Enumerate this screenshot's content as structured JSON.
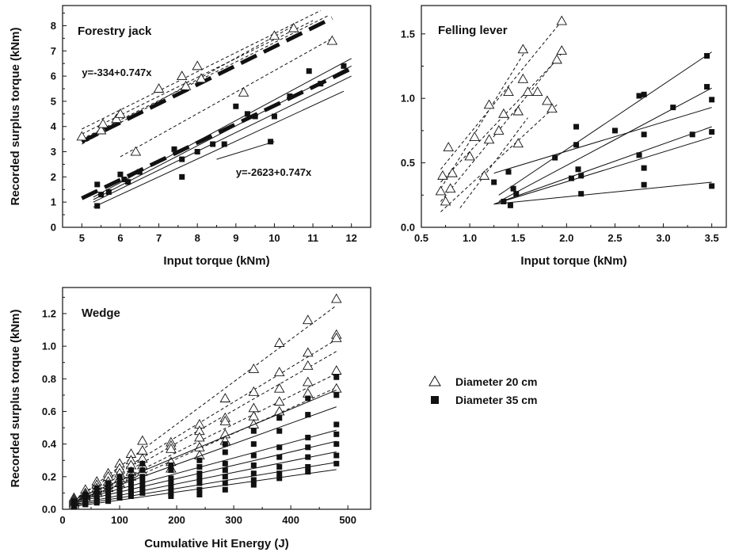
{
  "chart_data": [
    {
      "type": "scatter",
      "title": "Forestry jack",
      "xlabel": "Input torque (kNm)",
      "ylabel": "Recorded surplus torque (kNm)",
      "xlim": [
        4.5,
        12.5
      ],
      "ylim": [
        0,
        8.8
      ],
      "xticks": [
        5,
        6,
        7,
        8,
        9,
        10,
        11,
        12
      ],
      "yticks": [
        0,
        1,
        2,
        3,
        4,
        5,
        6,
        7,
        8
      ],
      "annotations": [
        {
          "text": "y=-334+0.747x",
          "x": 5.0,
          "y": 6.0
        },
        {
          "text": "y=-2623+0.747x",
          "x": 9.0,
          "y": 2.05
        }
      ],
      "series": [
        {
          "marker": "open-triangle",
          "points": [
            [
              5.0,
              3.6
            ],
            [
              5.5,
              3.85
            ],
            [
              5.55,
              4.1
            ],
            [
              5.9,
              4.3
            ],
            [
              6.0,
              4.5
            ],
            [
              6.4,
              3.0
            ],
            [
              7.0,
              5.5
            ],
            [
              7.6,
              6.0
            ],
            [
              7.7,
              5.6
            ],
            [
              8.0,
              6.4
            ],
            [
              8.1,
              5.9
            ],
            [
              9.2,
              5.35
            ],
            [
              10.0,
              7.6
            ],
            [
              10.5,
              7.9
            ],
            [
              11.5,
              7.4
            ]
          ],
          "fits": [
            {
              "style": "dashed",
              "x": [
                5.0,
                11.2
              ],
              "y": [
                3.9,
                8.6
              ]
            },
            {
              "style": "dashed",
              "x": [
                5.0,
                11.0
              ],
              "y": [
                3.7,
                8.2
              ]
            },
            {
              "style": "dashed",
              "x": [
                5.0,
                11.4
              ],
              "y": [
                3.5,
                8.4
              ]
            },
            {
              "style": "dashed",
              "x": [
                5.0,
                10.5
              ],
              "y": [
                3.3,
                8.0
              ]
            },
            {
              "style": "dashed",
              "x": [
                6.0,
                11.5
              ],
              "y": [
                2.8,
                7.5
              ]
            },
            {
              "style": "bold-dashed",
              "x": [
                5.0,
                11.5
              ],
              "y": [
                3.4,
                8.3
              ]
            }
          ]
        },
        {
          "marker": "filled-square",
          "points": [
            [
              5.4,
              0.85
            ],
            [
              5.4,
              1.7
            ],
            [
              5.5,
              1.3
            ],
            [
              5.7,
              1.4
            ],
            [
              6.0,
              2.1
            ],
            [
              6.1,
              1.9
            ],
            [
              6.2,
              1.8
            ],
            [
              6.5,
              2.2
            ],
            [
              7.4,
              3.1
            ],
            [
              7.6,
              2.0
            ],
            [
              7.6,
              2.7
            ],
            [
              8.0,
              3.0
            ],
            [
              8.4,
              3.3
            ],
            [
              8.7,
              3.3
            ],
            [
              9.0,
              4.8
            ],
            [
              9.3,
              4.5
            ],
            [
              9.5,
              4.4
            ],
            [
              9.9,
              3.4
            ],
            [
              10.0,
              4.4
            ],
            [
              10.4,
              5.2
            ],
            [
              10.9,
              6.2
            ],
            [
              11.2,
              5.7
            ],
            [
              11.8,
              6.4
            ]
          ],
          "fits": [
            {
              "style": "solid",
              "x": [
                5.3,
                12.0
              ],
              "y": [
                1.2,
                6.7
              ]
            },
            {
              "style": "solid",
              "x": [
                5.3,
                12.0
              ],
              "y": [
                1.1,
                6.4
              ]
            },
            {
              "style": "solid",
              "x": [
                5.3,
                12.0
              ],
              "y": [
                1.0,
                6.0
              ]
            },
            {
              "style": "solid",
              "x": [
                5.3,
                11.8
              ],
              "y": [
                0.8,
                5.4
              ]
            },
            {
              "style": "solid",
              "x": [
                8.5,
                10.0
              ],
              "y": [
                2.7,
                3.4
              ]
            },
            {
              "style": "bold-dashed",
              "x": [
                5.0,
                12.0
              ],
              "y": [
                1.15,
                6.3
              ]
            }
          ]
        }
      ]
    },
    {
      "type": "scatter",
      "title": "Felling lever",
      "xlabel": "Input torque (kNm)",
      "ylabel": "",
      "xlim": [
        0.5,
        3.65
      ],
      "ylim": [
        0,
        1.72
      ],
      "xticks": [
        0.5,
        1.0,
        1.5,
        2.0,
        2.5,
        3.0,
        3.5
      ],
      "yticks": [
        0.0,
        0.5,
        1.0,
        1.5
      ],
      "series": [
        {
          "marker": "open-triangle",
          "points": [
            [
              0.7,
              0.28
            ],
            [
              0.72,
              0.4
            ],
            [
              0.75,
              0.2
            ],
            [
              0.78,
              0.62
            ],
            [
              0.8,
              0.3
            ],
            [
              0.82,
              0.42
            ],
            [
              1.0,
              0.55
            ],
            [
              1.05,
              0.7
            ],
            [
              1.15,
              0.4
            ],
            [
              1.2,
              0.68
            ],
            [
              1.2,
              0.95
            ],
            [
              1.3,
              0.75
            ],
            [
              1.35,
              0.88
            ],
            [
              1.4,
              1.05
            ],
            [
              1.5,
              0.65
            ],
            [
              1.5,
              0.9
            ],
            [
              1.55,
              1.15
            ],
            [
              1.55,
              1.38
            ],
            [
              1.6,
              1.05
            ],
            [
              1.7,
              1.05
            ],
            [
              1.8,
              0.98
            ],
            [
              1.85,
              0.92
            ],
            [
              1.9,
              1.3
            ],
            [
              1.95,
              1.37
            ],
            [
              1.95,
              1.6
            ]
          ],
          "fits": [
            {
              "style": "dashed",
              "x": [
                0.7,
                1.95
              ],
              "y": [
                0.45,
                1.6
              ]
            },
            {
              "style": "dashed",
              "x": [
                0.7,
                1.6
              ],
              "y": [
                0.3,
                1.4
              ]
            },
            {
              "style": "dashed",
              "x": [
                0.7,
                1.9
              ],
              "y": [
                0.35,
                1.3
              ]
            },
            {
              "style": "dashed",
              "x": [
                0.7,
                1.95
              ],
              "y": [
                0.2,
                1.35
              ]
            },
            {
              "style": "dashed",
              "x": [
                0.7,
                1.9
              ],
              "y": [
                0.12,
                0.95
              ]
            },
            {
              "style": "dashed",
              "x": [
                0.9,
                1.6
              ],
              "y": [
                0.15,
                0.85
              ]
            }
          ]
        },
        {
          "marker": "filled-square",
          "points": [
            [
              1.25,
              0.35
            ],
            [
              1.35,
              0.2
            ],
            [
              1.4,
              0.43
            ],
            [
              1.42,
              0.17
            ],
            [
              1.45,
              0.3
            ],
            [
              1.48,
              0.26
            ],
            [
              1.88,
              0.54
            ],
            [
              2.05,
              0.38
            ],
            [
              2.1,
              0.78
            ],
            [
              2.1,
              0.64
            ],
            [
              2.12,
              0.45
            ],
            [
              2.15,
              0.26
            ],
            [
              2.15,
              0.4
            ],
            [
              2.5,
              0.75
            ],
            [
              2.75,
              0.56
            ],
            [
              2.75,
              1.02
            ],
            [
              2.8,
              1.03
            ],
            [
              2.8,
              0.72
            ],
            [
              2.8,
              0.46
            ],
            [
              2.8,
              0.33
            ],
            [
              3.1,
              0.93
            ],
            [
              3.3,
              0.72
            ],
            [
              3.45,
              1.33
            ],
            [
              3.45,
              1.09
            ],
            [
              3.5,
              0.99
            ],
            [
              3.5,
              0.74
            ],
            [
              3.5,
              0.32
            ]
          ],
          "fits": [
            {
              "style": "solid",
              "x": [
                1.3,
                3.5
              ],
              "y": [
                0.25,
                1.36
              ]
            },
            {
              "style": "solid",
              "x": [
                1.3,
                3.5
              ],
              "y": [
                0.2,
                1.08
              ]
            },
            {
              "style": "solid",
              "x": [
                1.25,
                3.5
              ],
              "y": [
                0.42,
                0.93
              ]
            },
            {
              "style": "solid",
              "x": [
                1.25,
                3.5
              ],
              "y": [
                0.18,
                0.78
              ]
            },
            {
              "style": "solid",
              "x": [
                1.25,
                3.5
              ],
              "y": [
                0.18,
                0.7
              ]
            },
            {
              "style": "solid",
              "x": [
                1.25,
                3.5
              ],
              "y": [
                0.18,
                0.35
              ]
            }
          ]
        }
      ]
    },
    {
      "type": "scatter",
      "title": "Wedge",
      "xlabel": "Cumulative Hit Energy (J)",
      "ylabel": "Recorded surplus torque (kNm)",
      "xlim": [
        0,
        540
      ],
      "ylim": [
        0,
        1.36
      ],
      "xticks": [
        0,
        100,
        200,
        300,
        400,
        500
      ],
      "yticks": [
        0.0,
        0.2,
        0.4,
        0.6,
        0.8,
        1.0,
        1.2
      ],
      "series": [
        {
          "marker": "open-triangle",
          "x": [
            20,
            40,
            60,
            80,
            100,
            120,
            140,
            190,
            240,
            285,
            335,
            380,
            430,
            480
          ],
          "levels": [
            [
              0.07,
              0.12,
              0.17,
              0.22,
              0.28,
              0.34,
              0.42,
              0.41,
              0.52,
              0.68,
              0.86,
              1.02,
              1.16,
              1.29
            ],
            [
              0.06,
              0.1,
              0.15,
              0.2,
              0.25,
              0.3,
              0.36,
              0.39,
              0.48,
              0.56,
              0.72,
              0.84,
              0.96,
              1.07
            ],
            [
              0.05,
              0.09,
              0.13,
              0.17,
              0.22,
              0.27,
              0.31,
              0.37,
              0.44,
              0.54,
              0.62,
              0.74,
              0.88,
              1.05
            ],
            [
              0.04,
              0.08,
              0.11,
              0.15,
              0.19,
              0.23,
              0.27,
              0.29,
              0.38,
              0.46,
              0.57,
              0.66,
              0.78,
              0.85
            ],
            [
              0.03,
              0.07,
              0.1,
              0.13,
              0.16,
              0.2,
              0.23,
              0.25,
              0.33,
              0.42,
              0.52,
              0.6,
              0.71,
              0.74
            ]
          ]
        },
        {
          "marker": "filled-square",
          "x": [
            20,
            40,
            60,
            80,
            100,
            120,
            140,
            190,
            240,
            285,
            335,
            380,
            430,
            480
          ],
          "levels": [
            [
              0.05,
              0.09,
              0.13,
              0.16,
              0.2,
              0.24,
              0.28,
              0.27,
              0.3,
              0.4,
              0.48,
              0.56,
              0.68,
              0.81
            ],
            [
              0.04,
              0.07,
              0.11,
              0.14,
              0.17,
              0.2,
              0.24,
              0.24,
              0.26,
              0.35,
              0.4,
              0.48,
              0.58,
              0.7
            ],
            [
              0.03,
              0.06,
              0.09,
              0.12,
              0.14,
              0.17,
              0.2,
              0.19,
              0.22,
              0.28,
              0.33,
              0.38,
              0.44,
              0.52
            ],
            [
              0.03,
              0.05,
              0.08,
              0.1,
              0.12,
              0.14,
              0.17,
              0.16,
              0.19,
              0.24,
              0.27,
              0.32,
              0.38,
              0.46
            ],
            [
              0.02,
              0.04,
              0.06,
              0.08,
              0.1,
              0.12,
              0.14,
              0.13,
              0.16,
              0.2,
              0.22,
              0.26,
              0.32,
              0.4
            ],
            [
              0.02,
              0.03,
              0.05,
              0.07,
              0.08,
              0.1,
              0.12,
              0.1,
              0.12,
              0.16,
              0.18,
              0.22,
              0.26,
              0.33
            ],
            [
              0.02,
              0.03,
              0.04,
              0.05,
              0.07,
              0.08,
              0.1,
              0.08,
              0.09,
              0.12,
              0.15,
              0.19,
              0.23,
              0.28
            ]
          ]
        }
      ]
    }
  ],
  "legend": {
    "placement": "right of wedge panel",
    "items": [
      {
        "marker": "open-triangle",
        "label": "Diameter 20 cm"
      },
      {
        "marker": "filled-square",
        "label": "Diameter 35 cm"
      }
    ]
  }
}
